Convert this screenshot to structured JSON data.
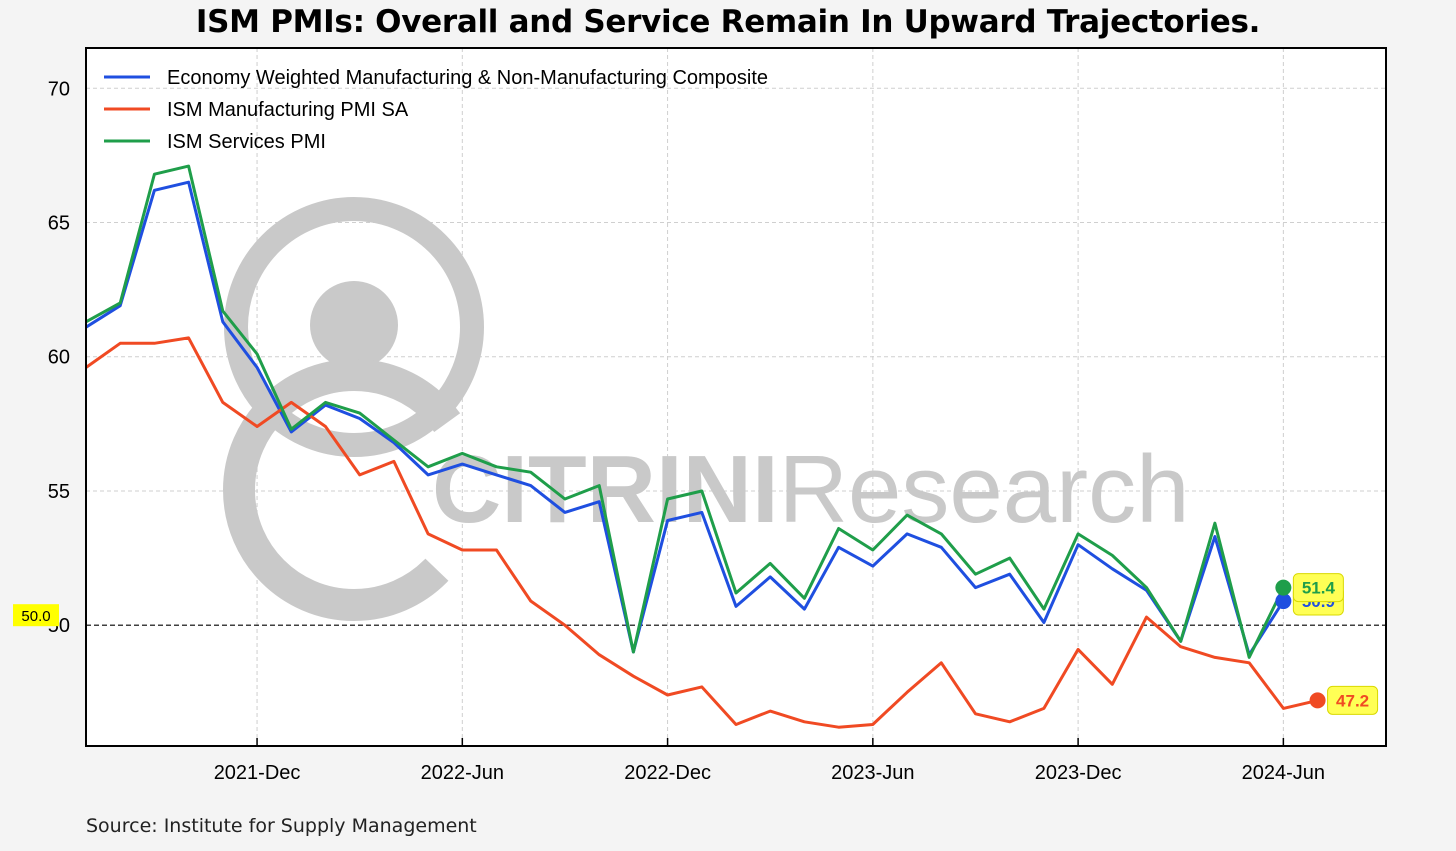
{
  "title": "ISM PMIs: Overall and Service Remain In Upward Trajectories.",
  "source": "Source: Institute for Supply Management",
  "watermark": {
    "bold": "CITRINI",
    "light": "Research"
  },
  "chart_data": {
    "type": "line",
    "x_ticks": [
      "2021-Dec",
      "2022-Jun",
      "2022-Dec",
      "2023-Jun",
      "2023-Dec",
      "2024-Jun"
    ],
    "y_ticks": [
      "70",
      "65",
      "60",
      "55",
      "50"
    ],
    "ylim": [
      45.5,
      71.5
    ],
    "x_start": "2021-07",
    "x_end": "2024-09",
    "grid": true,
    "legend_position": "top-left",
    "reference_line": {
      "value": 50,
      "label": "50.0"
    },
    "series": [
      {
        "name": "Economy Weighted Manufacturing & Non-Manufacturing Composite",
        "color": "#1f4fe0",
        "last_label": "50.9",
        "values": [
          61.1,
          61.9,
          66.2,
          66.5,
          61.3,
          59.6,
          57.2,
          58.2,
          57.7,
          56.8,
          55.6,
          56.0,
          55.6,
          55.2,
          54.2,
          54.6,
          49.0,
          53.9,
          54.2,
          50.7,
          51.8,
          50.6,
          52.9,
          52.2,
          53.4,
          52.9,
          51.4,
          51.9,
          50.1,
          53.0,
          52.1,
          51.3,
          49.4,
          53.3,
          48.9,
          50.9
        ]
      },
      {
        "name": "ISM Manufacturing PMI SA",
        "color": "#f04a23",
        "last_label": "47.2",
        "values": [
          59.6,
          60.5,
          60.5,
          60.7,
          58.3,
          57.4,
          58.3,
          57.4,
          55.6,
          56.1,
          53.4,
          52.8,
          52.8,
          50.9,
          50.0,
          48.9,
          48.1,
          47.4,
          47.7,
          46.3,
          46.8,
          46.4,
          46.2,
          46.3,
          47.5,
          48.6,
          46.7,
          46.4,
          46.9,
          49.1,
          47.8,
          50.3,
          49.2,
          48.8,
          48.6,
          46.9,
          47.2
        ]
      },
      {
        "name": "ISM Services PMI",
        "color": "#1f9e4a",
        "last_label": "51.4",
        "values": [
          61.3,
          62.0,
          66.8,
          67.1,
          61.7,
          60.1,
          57.3,
          58.3,
          57.9,
          56.9,
          55.9,
          56.4,
          55.9,
          55.7,
          54.7,
          55.2,
          49.0,
          54.7,
          55.0,
          51.2,
          52.3,
          51.0,
          53.6,
          52.8,
          54.1,
          53.4,
          51.9,
          52.5,
          50.6,
          53.4,
          52.6,
          51.4,
          49.4,
          53.8,
          48.8,
          51.4
        ]
      }
    ]
  }
}
